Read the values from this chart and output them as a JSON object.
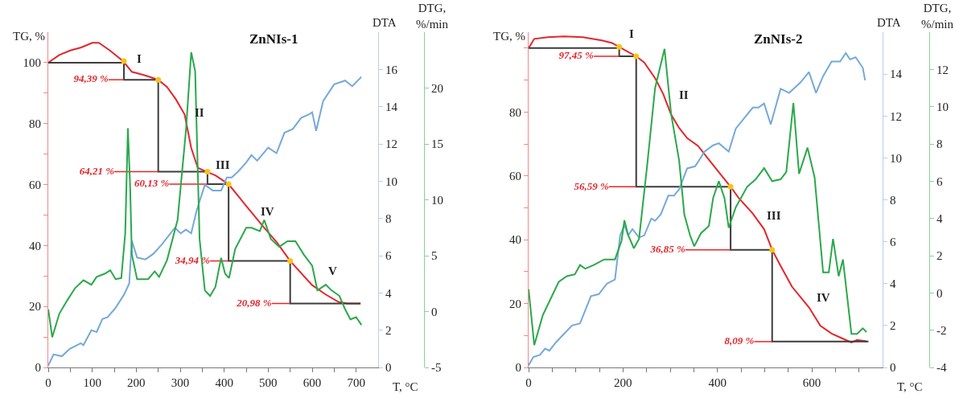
{
  "chart_data": [
    {
      "type": "line",
      "title": "ZnNIs-1",
      "xlabel": "T, °C",
      "ylabel": "TG, %",
      "y2label": "DTA",
      "y3label": "DTG,\n%/min",
      "xlim": [
        0,
        750
      ],
      "xticks": [
        0,
        {
          "value": 50,
          "label": null
        },
        100,
        {
          "value": 150,
          "label": null
        },
        200,
        {
          "value": 250,
          "label": null
        },
        300,
        {
          "value": 350,
          "label": null
        },
        400,
        {
          "value": 450,
          "label": null
        },
        500,
        {
          "value": 550,
          "label": null
        },
        600,
        {
          "value": 650,
          "label": null
        },
        700
      ],
      "ylim": [
        0,
        110
      ],
      "yticks": [
        0,
        {
          "value": 10,
          "label": null
        },
        20,
        {
          "value": 30,
          "label": null
        },
        40,
        {
          "value": 50,
          "label": null
        },
        60,
        {
          "value": 70,
          "label": null
        },
        80,
        {
          "value": 90,
          "label": null
        },
        100
      ],
      "y2lim": [
        0,
        18
      ],
      "y2ticks": [
        0,
        2,
        4,
        6,
        8,
        10,
        12,
        14,
        16
      ],
      "y3lim": [
        -5,
        25
      ],
      "y3ticks": [
        -5,
        0,
        5,
        10,
        15,
        20
      ],
      "series": [
        {
          "type": "line",
          "axis": "y",
          "color": "#e3262b",
          "x": [
            0,
            25,
            50,
            75,
            100,
            115,
            140,
            170,
            190,
            220,
            250,
            270,
            290,
            310,
            325,
            340,
            360,
            380,
            410,
            450,
            490,
            520,
            550,
            600,
            630,
            660,
            680,
            710
          ],
          "values": [
            100,
            102.5,
            104,
            105,
            106.5,
            106.5,
            104,
            100.5,
            97,
            95.8,
            94.39,
            92,
            88,
            83,
            72,
            65.5,
            64.21,
            63,
            60.13,
            53,
            46,
            41,
            34.94,
            27,
            24,
            21.5,
            20.98,
            20.98
          ]
        },
        {
          "type": "line",
          "axis": "y2",
          "color": "#74a9d8",
          "x": [
            0,
            12,
            31,
            49,
            74,
            80,
            98,
            110,
            123,
            135,
            153,
            172,
            184,
            190,
            202,
            221,
            239,
            258,
            288,
            301,
            313,
            325,
            337,
            356,
            374,
            393,
            406,
            417,
            431,
            450,
            462,
            475,
            500,
            519,
            537,
            556,
            575,
            594,
            600,
            609,
            625,
            650,
            675,
            691,
            712
          ],
          "values": [
            0.1,
            0.7,
            0.6,
            1.0,
            1.3,
            1.2,
            2.0,
            1.9,
            2.6,
            2.7,
            3.2,
            3.9,
            4.5,
            6.8,
            5.9,
            5.8,
            6.1,
            6.6,
            7.5,
            7.2,
            7.4,
            7.2,
            8.4,
            9.8,
            9.5,
            9.5,
            10.2,
            10.2,
            10.5,
            11.0,
            11.4,
            11.1,
            11.8,
            11.5,
            12.6,
            12.8,
            13.4,
            13.6,
            13.7,
            12.7,
            14.3,
            15.2,
            15.4,
            15.1,
            15.6
          ]
        },
        {
          "type": "line",
          "axis": "y3",
          "color": "#2aa84a",
          "x": [
            0,
            9,
            25,
            43,
            61,
            80,
            98,
            110,
            129,
            141,
            153,
            166,
            175,
            181,
            186,
            190,
            202,
            227,
            242,
            252,
            270,
            294,
            313,
            325,
            334,
            344,
            356,
            368,
            380,
            393,
            402,
            411,
            425,
            450,
            462,
            481,
            491,
            506,
            525,
            544,
            562,
            581,
            600,
            612,
            631,
            644,
            662,
            675,
            687,
            700,
            712
          ],
          "values": [
            0.2,
            -2.3,
            -0.2,
            1.0,
            2.1,
            2.8,
            2.4,
            3.1,
            3.4,
            3.7,
            2.9,
            3.0,
            7.0,
            16.4,
            11.4,
            5.1,
            2.9,
            2.9,
            3.6,
            3.1,
            4.6,
            8.2,
            16.2,
            23.2,
            21.5,
            6.5,
            1.9,
            1.4,
            2.2,
            4.8,
            3.4,
            3.0,
            5.6,
            7.5,
            7.5,
            7.2,
            8.2,
            6.5,
            5.8,
            6.3,
            6.3,
            5.1,
            4.1,
            1.9,
            2.4,
            1.9,
            1.4,
            0.2,
            -0.7,
            -0.5,
            -1.2
          ]
        },
        {
          "type": "line",
          "axis": "y",
          "color": "#3c3c3c",
          "x": [
            0,
            172,
            172,
            250,
            250,
            362,
            362,
            410,
            410,
            550,
            550,
            710
          ],
          "values": [
            100,
            100,
            94.39,
            94.39,
            64.21,
            64.21,
            60.13,
            60.13,
            34.94,
            34.94,
            20.98,
            20.98
          ]
        },
        {
          "type": "line",
          "axis": "y",
          "color": "#e3262b",
          "x": [
            137,
            172,
            null,
            150,
            250,
            null,
            275,
            362,
            null,
            368,
            410,
            null,
            508,
            550
          ],
          "values": [
            94.39,
            94.39,
            null,
            64.21,
            64.21,
            null,
            60.13,
            60.13,
            null,
            34.94,
            34.94,
            null,
            20.98,
            20.98
          ],
          "value_labels": [
            "94,39 %",
            null,
            null,
            "64,21 %",
            null,
            null,
            "60,13 %",
            null,
            null,
            "34,94 %",
            null,
            null,
            "20,98 %",
            null
          ]
        },
        {
          "type": "scatter",
          "axis": "y",
          "marker": "circle",
          "color": "#f5c518",
          "x": [
            172,
            250,
            362,
            410,
            550
          ],
          "values": [
            100.5,
            94.39,
            64.21,
            60.13,
            34.94
          ]
        }
      ],
      "annotations": [
        "I",
        "II",
        "III",
        "IV",
        "V"
      ]
    },
    {
      "type": "line",
      "title": "ZnNIs-2",
      "xlabel": "T, °C",
      "ylabel": "TG, %",
      "y2label": "DTA",
      "y3label": "DTG,\n%/min",
      "xlim": [
        0,
        750
      ],
      "xticks": [
        0,
        {
          "value": 50,
          "label": null
        },
        {
          "value": 100,
          "label": null
        },
        {
          "value": 150,
          "label": null
        },
        200,
        {
          "value": 250,
          "label": null
        },
        {
          "value": 300,
          "label": null
        },
        {
          "value": 350,
          "label": null
        },
        400,
        {
          "value": 450,
          "label": null
        },
        {
          "value": 500,
          "label": null
        },
        {
          "value": 550,
          "label": null
        },
        600,
        {
          "value": 650,
          "label": null
        },
        {
          "value": 700,
          "label": null
        }
      ],
      "ylim": [
        0,
        105
      ],
      "yticks": [
        0,
        {
          "value": 10,
          "label": null
        },
        20,
        {
          "value": 30,
          "label": null
        },
        40,
        {
          "value": 50,
          "label": null
        },
        60,
        {
          "value": 70,
          "label": null
        },
        80,
        {
          "value": 90,
          "label": null
        },
        {
          "value": 100,
          "label": null
        }
      ],
      "y2lim": [
        0,
        16
      ],
      "y2ticks": [
        0,
        2,
        4,
        6,
        8,
        10,
        12,
        14
      ],
      "y3lim": [
        -4,
        14
      ],
      "y3ticks": [
        -4,
        -2,
        0,
        2,
        4,
        6,
        8,
        10,
        12
      ],
      "series": [
        {
          "type": "line",
          "axis": "y",
          "color": "#e3262b",
          "x": [
            0,
            12,
            41,
            75,
            115,
            155,
            177,
            192,
            211,
            228,
            245,
            268,
            285,
            302,
            319,
            336,
            359,
            385,
            428,
            445,
            475,
            499,
            516,
            534,
            558,
            594,
            618,
            642,
            666,
            684,
            696,
            716
          ],
          "values": [
            100,
            102.9,
            103.4,
            103.7,
            103.4,
            102.4,
            101.6,
            100.4,
            98.8,
            97.45,
            95.5,
            90.6,
            85.7,
            79.2,
            75,
            71.8,
            69.4,
            64.5,
            56.59,
            53.1,
            48.2,
            43.3,
            36.85,
            31.8,
            25.3,
            18.8,
            13.1,
            10.6,
            9.0,
            7.8,
            8.6,
            8.2
          ]
        },
        {
          "type": "line",
          "axis": "y2",
          "color": "#74a9d8",
          "x": [
            0,
            10,
            24,
            35,
            44,
            58,
            75,
            92,
            109,
            132,
            149,
            166,
            183,
            194,
            203,
            211,
            220,
            234,
            245,
            260,
            268,
            280,
            296,
            308,
            319,
            336,
            353,
            373,
            391,
            403,
            424,
            439,
            457,
            475,
            487,
            499,
            513,
            534,
            552,
            576,
            594,
            609,
            624,
            642,
            660,
            672,
            681,
            693,
            708,
            713
          ],
          "values": [
            0.1,
            0.5,
            0.6,
            0.9,
            0.8,
            1.2,
            1.6,
            2.0,
            2.1,
            3.4,
            3.5,
            4.0,
            4.2,
            6.3,
            6.8,
            6.3,
            6.6,
            6.2,
            6.3,
            7.1,
            7.0,
            7.3,
            8.2,
            8.2,
            8.5,
            9.5,
            9.6,
            10.3,
            10.6,
            10.7,
            10.3,
            11.4,
            11.9,
            12.4,
            12.4,
            12.6,
            11.6,
            13.3,
            13.1,
            13.6,
            14.1,
            13.1,
            13.9,
            14.6,
            14.6,
            15.0,
            14.7,
            14.8,
            14.3,
            13.7
          ]
        },
        {
          "type": "line",
          "axis": "y3",
          "color": "#2aa84a",
          "x": [
            0,
            12,
            30,
            47,
            64,
            81,
            98,
            109,
            120,
            138,
            160,
            183,
            197,
            203,
            211,
            223,
            234,
            251,
            268,
            288,
            302,
            319,
            330,
            342,
            351,
            365,
            382,
            391,
            403,
            415,
            424,
            439,
            463,
            481,
            499,
            516,
            534,
            546,
            561,
            573,
            591,
            606,
            624,
            636,
            645,
            657,
            666,
            684,
            696,
            708,
            716
          ],
          "values": [
            0.2,
            -2.8,
            -1.2,
            -0.3,
            0.6,
            0.9,
            1.0,
            1.5,
            1.3,
            1.5,
            1.8,
            1.8,
            2.8,
            3.9,
            3.1,
            2.4,
            2.9,
            6.8,
            11.0,
            13.1,
            9.6,
            7.1,
            4.2,
            3.1,
            2.5,
            3.2,
            3.6,
            5.1,
            6.0,
            5.1,
            3.5,
            4.6,
            5.7,
            6.1,
            6.7,
            6.0,
            6.1,
            6.5,
            10.2,
            6.4,
            7.8,
            6.2,
            1.1,
            1.1,
            2.9,
            0.9,
            1.8,
            -2.2,
            -2.2,
            -1.9,
            -2.1
          ]
        },
        {
          "type": "line",
          "axis": "y",
          "color": "#3c3c3c",
          "x": [
            0,
            192,
            192,
            228,
            228,
            428,
            428,
            516,
            516,
            720
          ],
          "values": [
            100,
            100,
            97.45,
            97.45,
            56.59,
            56.59,
            36.85,
            36.85,
            8.09,
            8.09
          ]
        },
        {
          "type": "line",
          "axis": "y",
          "color": "#e3262b",
          "x": [
            138,
            192,
            null,
            170,
            228,
            null,
            332,
            428,
            null,
            478,
            516
          ],
          "values": [
            97.45,
            97.45,
            null,
            56.59,
            56.59,
            null,
            36.85,
            36.85,
            null,
            8.09,
            8.09
          ],
          "value_labels": [
            "97,45 %",
            null,
            null,
            "56,59 %",
            null,
            null,
            "36,85 %",
            null,
            null,
            "8,09 %",
            null
          ]
        },
        {
          "type": "scatter",
          "axis": "y",
          "marker": "circle",
          "color": "#f5c518",
          "x": [
            192,
            228,
            428,
            516
          ],
          "values": [
            100.4,
            97.45,
            56.59,
            36.85
          ]
        }
      ],
      "annotations": [
        "I",
        "II",
        "III",
        "IV"
      ]
    }
  ]
}
